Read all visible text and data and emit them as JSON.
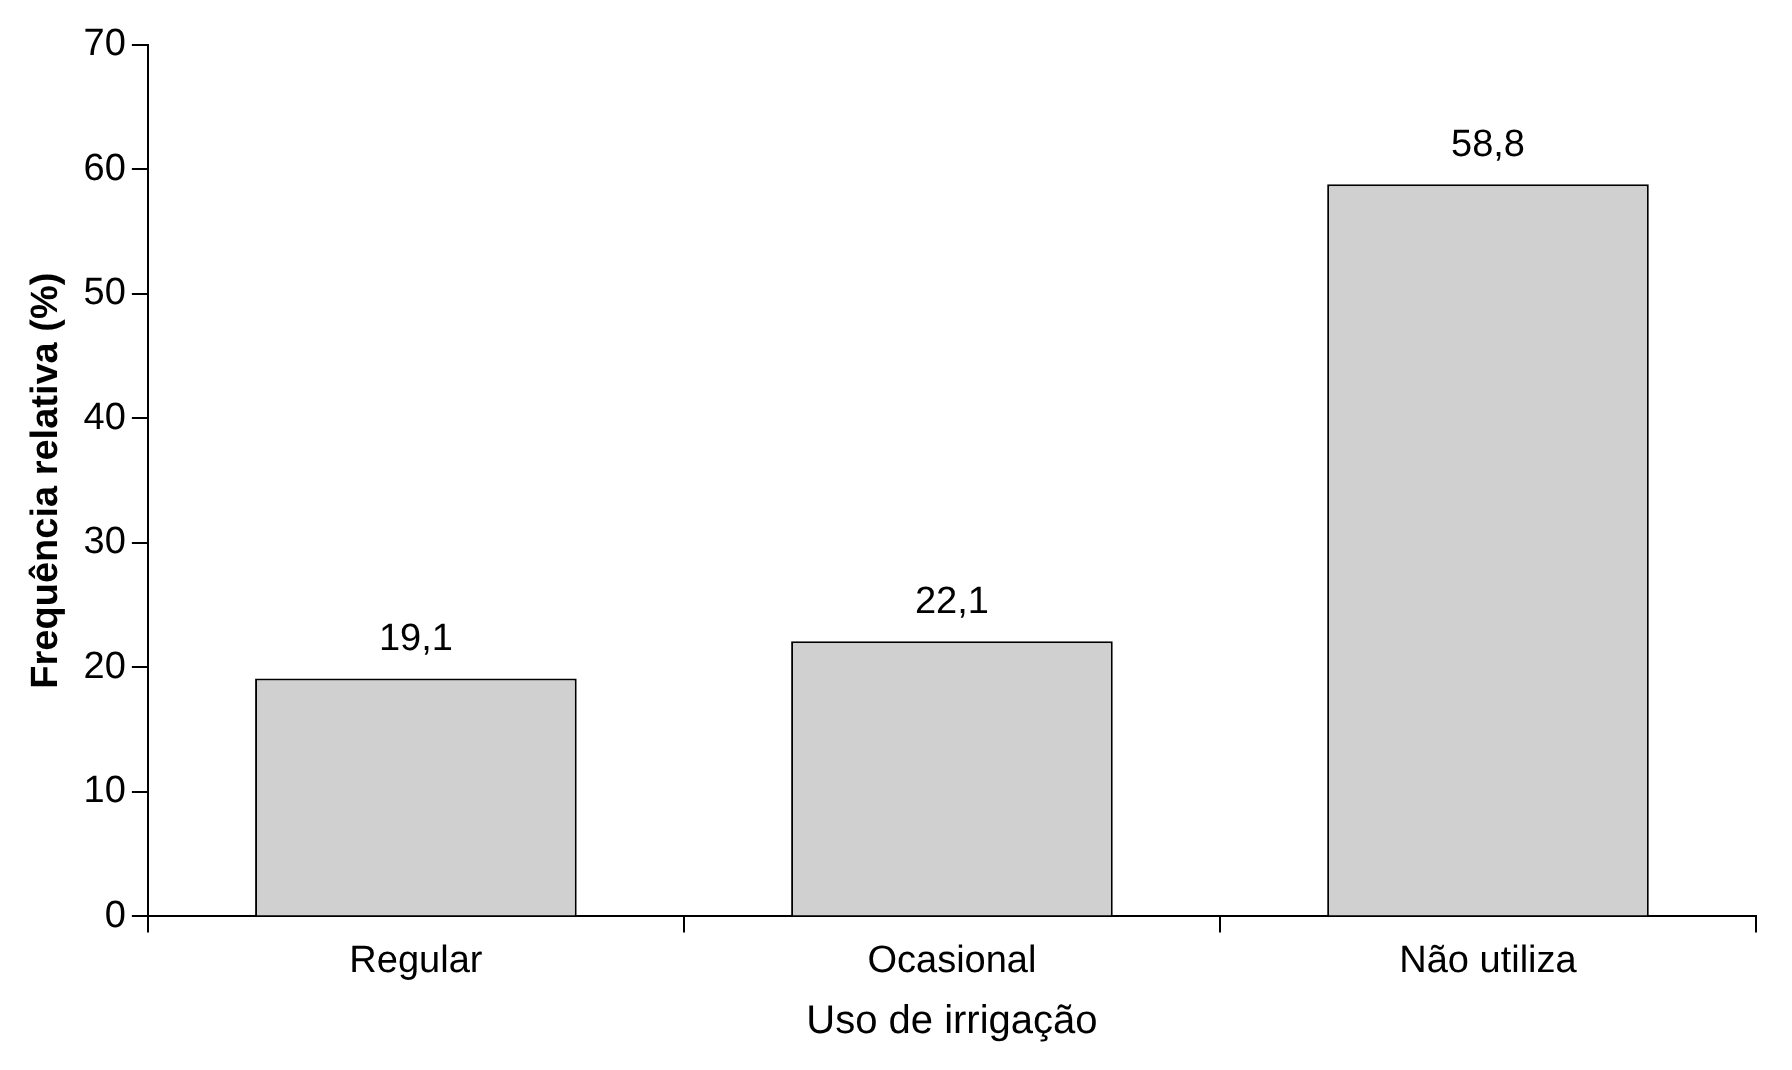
{
  "chart_data": {
    "type": "bar",
    "xlabel": "Uso de irrigação",
    "ylabel": "Frequência relativa (%)",
    "categories": [
      "Regular",
      "Ocasional",
      "Não utiliza"
    ],
    "values": [
      19.1,
      22.1,
      58.8
    ],
    "value_labels": [
      "19,1",
      "22,1",
      "58,8"
    ],
    "color": "#d0d0d0",
    "ylim": [
      0,
      70
    ],
    "yticks": [
      0,
      10,
      20,
      30,
      40,
      50,
      60,
      70
    ],
    "grid": false,
    "legend": false
  }
}
